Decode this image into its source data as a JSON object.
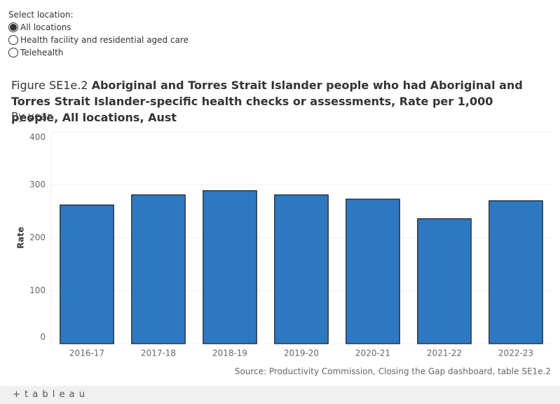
{
  "controls": {
    "label": "Select location:",
    "options": [
      "All locations",
      "Health facility and residential aged care",
      "Telehealth"
    ],
    "selected": 0
  },
  "chart_data": {
    "type": "bar",
    "figure": "Figure SE1e.2",
    "title": "Aboriginal and Torres Strait Islander people who had Aboriginal and Torres Strait Islander-specific health checks or assessments, Rate per 1,000 people, All locations, Aust",
    "subtitle": "By year",
    "y_label": "Rate",
    "categories": [
      "2016-17",
      "2017-18",
      "2018-19",
      "2019-20",
      "2020-21",
      "2021-22",
      "2022-23"
    ],
    "values": [
      262,
      281,
      289,
      281,
      273,
      236,
      270
    ],
    "color": "#2e78c0",
    "ylim": [
      0,
      400
    ],
    "yticks": [
      0,
      100,
      200,
      300,
      400
    ],
    "grid": true,
    "source": "Source: Productivity Commission, Closing the Gap dashboard, table SE1e.2"
  },
  "footer": {
    "logo": "+ t a b l e a u"
  }
}
